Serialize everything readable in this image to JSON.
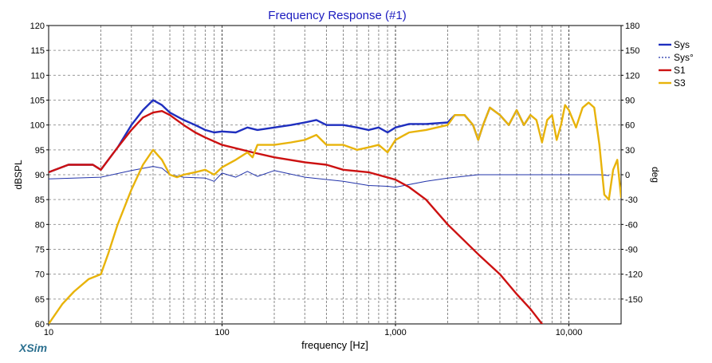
{
  "app": {
    "brand": "XSim",
    "brand_color": "#2a6f8f"
  },
  "chart_data": {
    "type": "line",
    "title": "Frequency Response (#1)",
    "title_color": "#1b1bbf",
    "xlabel": "frequency [Hz]",
    "ylabel_left": "dBSPL",
    "ylabel_right": "deg",
    "x_scale": "log",
    "xlim": [
      10,
      20000
    ],
    "ylim_left": [
      60,
      120
    ],
    "ylim_right": [
      -180,
      180
    ],
    "grid": true,
    "legend_position": "top-right",
    "x_ticks": [
      {
        "value": 10,
        "label": "10"
      },
      {
        "value": 100,
        "label": "100"
      },
      {
        "value": 1000,
        "label": "1,000"
      },
      {
        "value": 10000,
        "label": "10,000"
      }
    ],
    "y_left_ticks": [
      "60",
      "65",
      "70",
      "75",
      "80",
      "85",
      "90",
      "95",
      "100",
      "105",
      "110",
      "115",
      "120"
    ],
    "y_right_ticks": [
      "-150",
      "-120",
      "-90",
      "-60",
      "-30",
      "0",
      "30",
      "60",
      "90",
      "120",
      "150",
      "180"
    ],
    "series": [
      {
        "name": "Sys",
        "axis": "left",
        "color": "#1f2fbf",
        "width": 2.4,
        "dash": "",
        "points": [
          [
            10,
            90.5
          ],
          [
            13,
            92
          ],
          [
            18,
            92
          ],
          [
            20,
            91
          ],
          [
            25,
            95.5
          ],
          [
            30,
            100
          ],
          [
            35,
            103
          ],
          [
            40,
            105
          ],
          [
            45,
            104
          ],
          [
            50,
            102.5
          ],
          [
            60,
            101
          ],
          [
            70,
            100
          ],
          [
            80,
            99
          ],
          [
            90,
            98.5
          ],
          [
            100,
            98.7
          ],
          [
            120,
            98.5
          ],
          [
            140,
            99.5
          ],
          [
            160,
            99
          ],
          [
            200,
            99.5
          ],
          [
            250,
            100
          ],
          [
            300,
            100.5
          ],
          [
            350,
            101
          ],
          [
            400,
            100
          ],
          [
            500,
            100
          ],
          [
            600,
            99.5
          ],
          [
            700,
            99
          ],
          [
            800,
            99.5
          ],
          [
            900,
            98.5
          ],
          [
            1000,
            99.5
          ],
          [
            1200,
            100.2
          ],
          [
            1500,
            100.2
          ],
          [
            2000,
            100.5
          ],
          [
            2200,
            102
          ],
          [
            2500,
            102
          ],
          [
            2800,
            100
          ],
          [
            3000,
            97
          ],
          [
            3200,
            100
          ],
          [
            3500,
            103.5
          ],
          [
            4000,
            102
          ],
          [
            4500,
            100
          ],
          [
            5000,
            103
          ],
          [
            5500,
            100
          ],
          [
            6000,
            102
          ]
        ]
      },
      {
        "name": "Sys°",
        "axis": "right",
        "color": "#2233aa",
        "width": 1,
        "dash": "",
        "points": [
          [
            10,
            -5
          ],
          [
            20,
            -3
          ],
          [
            30,
            5
          ],
          [
            40,
            10
          ],
          [
            45,
            8
          ],
          [
            50,
            0
          ],
          [
            60,
            -3
          ],
          [
            80,
            -4
          ],
          [
            90,
            -8
          ],
          [
            100,
            2
          ],
          [
            120,
            -3
          ],
          [
            140,
            4
          ],
          [
            160,
            -2
          ],
          [
            200,
            5
          ],
          [
            300,
            -3
          ],
          [
            500,
            -8
          ],
          [
            700,
            -13
          ],
          [
            900,
            -14
          ],
          [
            1000,
            -15
          ],
          [
            1500,
            -8
          ],
          [
            2000,
            -4
          ],
          [
            3000,
            0
          ],
          [
            5000,
            0
          ],
          [
            10000,
            0
          ],
          [
            15000,
            0
          ],
          [
            17000,
            -1
          ]
        ]
      },
      {
        "name": "S1",
        "axis": "left",
        "color": "#cc1111",
        "width": 2.4,
        "dash": "",
        "points": [
          [
            10,
            90.5
          ],
          [
            13,
            92
          ],
          [
            18,
            92
          ],
          [
            20,
            91
          ],
          [
            25,
            95.5
          ],
          [
            30,
            99
          ],
          [
            35,
            101.5
          ],
          [
            40,
            102.5
          ],
          [
            45,
            102.8
          ],
          [
            50,
            102
          ],
          [
            60,
            100
          ],
          [
            70,
            98.5
          ],
          [
            80,
            97.5
          ],
          [
            100,
            96
          ],
          [
            150,
            94.5
          ],
          [
            200,
            93.5
          ],
          [
            300,
            92.5
          ],
          [
            400,
            92
          ],
          [
            500,
            91
          ],
          [
            700,
            90.5
          ],
          [
            1000,
            89
          ],
          [
            1200,
            87.5
          ],
          [
            1500,
            85
          ],
          [
            2000,
            80
          ],
          [
            3000,
            74
          ],
          [
            4000,
            70
          ],
          [
            5000,
            66
          ],
          [
            6000,
            63
          ],
          [
            7000,
            60
          ]
        ]
      },
      {
        "name": "S3",
        "axis": "left",
        "color": "#e8b30a",
        "width": 2.4,
        "dash": "",
        "points": [
          [
            10,
            60
          ],
          [
            12,
            64
          ],
          [
            14,
            66.5
          ],
          [
            17,
            69
          ],
          [
            20,
            70
          ],
          [
            22,
            74
          ],
          [
            25,
            80
          ],
          [
            30,
            87
          ],
          [
            35,
            92
          ],
          [
            40,
            95
          ],
          [
            45,
            93
          ],
          [
            50,
            90
          ],
          [
            55,
            89.5
          ],
          [
            60,
            90
          ],
          [
            70,
            90.5
          ],
          [
            80,
            91
          ],
          [
            90,
            90
          ],
          [
            100,
            91.5
          ],
          [
            120,
            93
          ],
          [
            140,
            94.5
          ],
          [
            150,
            93.5
          ],
          [
            160,
            96
          ],
          [
            200,
            96
          ],
          [
            250,
            96.5
          ],
          [
            300,
            97
          ],
          [
            350,
            98
          ],
          [
            400,
            96
          ],
          [
            500,
            96
          ],
          [
            600,
            95
          ],
          [
            700,
            95.5
          ],
          [
            800,
            96
          ],
          [
            900,
            94.5
          ],
          [
            1000,
            97
          ],
          [
            1200,
            98.5
          ],
          [
            1500,
            99
          ],
          [
            2000,
            100
          ],
          [
            2200,
            102
          ],
          [
            2500,
            102
          ],
          [
            2800,
            100
          ],
          [
            3000,
            97
          ],
          [
            3200,
            100
          ],
          [
            3500,
            103.5
          ],
          [
            4000,
            102
          ],
          [
            4500,
            100
          ],
          [
            5000,
            103
          ],
          [
            5500,
            100
          ],
          [
            6000,
            102
          ],
          [
            6500,
            101
          ],
          [
            7000,
            96.5
          ],
          [
            7500,
            101
          ],
          [
            8000,
            102
          ],
          [
            8500,
            97
          ],
          [
            9000,
            100
          ],
          [
            9500,
            104
          ],
          [
            10000,
            103
          ],
          [
            11000,
            99.5
          ],
          [
            12000,
            103.5
          ],
          [
            13000,
            104.5
          ],
          [
            14000,
            103.5
          ],
          [
            15000,
            96
          ],
          [
            16000,
            86
          ],
          [
            17000,
            85
          ],
          [
            18000,
            91
          ],
          [
            19000,
            93
          ],
          [
            20000,
            85.5
          ]
        ]
      }
    ]
  }
}
